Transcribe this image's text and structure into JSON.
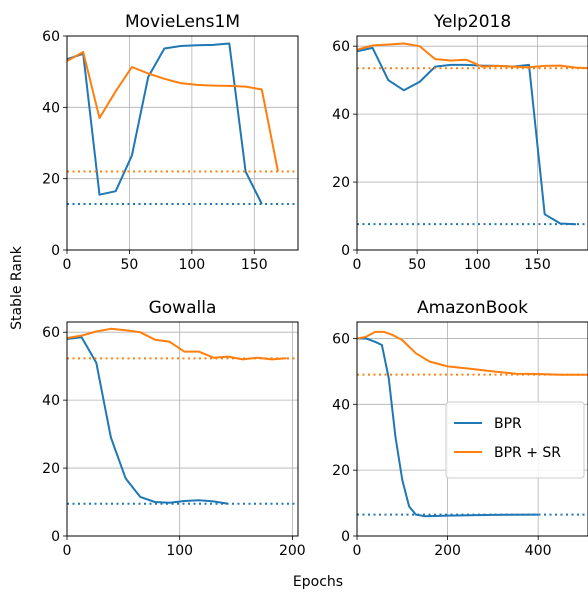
{
  "figure": {
    "ylabel": "Stable Rank",
    "xlabel": "Epochs"
  },
  "colors": {
    "blue": "#1f77b4",
    "orange": "#ff7f0e",
    "grid": "#b0b0b0"
  },
  "chart_data": [
    {
      "type": "line",
      "title": "MovieLens1M",
      "xlim": [
        0,
        185
      ],
      "ylim": [
        0,
        60
      ],
      "xticks": [
        0,
        50,
        100,
        150
      ],
      "yticks": [
        0,
        20,
        40,
        60
      ],
      "grid": true,
      "series": [
        {
          "name": "BPR",
          "color": "#1f77b4",
          "x": [
            0,
            13,
            26,
            39,
            52,
            65,
            78,
            91,
            104,
            117,
            130,
            143,
            156
          ],
          "y": [
            53.5,
            55,
            15.5,
            16.5,
            26.5,
            48.5,
            56.5,
            57.2,
            57.4,
            57.5,
            57.9,
            22,
            12.9
          ]
        },
        {
          "name": "BPR + SR",
          "color": "#ff7f0e",
          "x": [
            0,
            13,
            26,
            39,
            52,
            65,
            78,
            91,
            104,
            117,
            130,
            143,
            156,
            169
          ],
          "y": [
            53,
            55.5,
            37,
            44.5,
            51.3,
            49.5,
            48,
            46.8,
            46.3,
            46.1,
            46,
            45.8,
            45,
            22
          ]
        }
      ],
      "baselines": [
        {
          "series": "BPR",
          "y": 12.9
        },
        {
          "series": "BPR + SR",
          "y": 22.0
        }
      ]
    },
    {
      "type": "line",
      "title": "Yelp2018",
      "xlim": [
        0,
        192
      ],
      "ylim": [
        0,
        63
      ],
      "xticks": [
        0,
        50,
        100,
        150
      ],
      "yticks": [
        0,
        20,
        40,
        60
      ],
      "grid": true,
      "series": [
        {
          "name": "BPR",
          "color": "#1f77b4",
          "x": [
            0,
            13,
            26,
            39,
            52,
            65,
            78,
            91,
            104,
            117,
            130,
            143,
            156,
            169,
            182
          ],
          "y": [
            58.5,
            59.5,
            50,
            47,
            49.5,
            54,
            54.5,
            54.5,
            54.3,
            54.2,
            54,
            54.5,
            10.5,
            7.8,
            7.6
          ]
        },
        {
          "name": "BPR + SR",
          "color": "#ff7f0e",
          "x": [
            0,
            13,
            26,
            39,
            52,
            65,
            78,
            91,
            104,
            117,
            130,
            143,
            156,
            169,
            182,
            195
          ],
          "y": [
            59,
            60.2,
            60.5,
            60.8,
            60,
            56.2,
            55.8,
            56,
            54,
            54.2,
            54,
            53.8,
            54.2,
            54.3,
            53.7,
            53.5
          ]
        }
      ],
      "baselines": [
        {
          "series": "BPR",
          "y": 7.6
        },
        {
          "series": "BPR + SR",
          "y": 53.5
        }
      ]
    },
    {
      "type": "line",
      "title": "Gowalla",
      "xlim": [
        0,
        205
      ],
      "ylim": [
        0,
        63
      ],
      "xticks": [
        0,
        100,
        200
      ],
      "yticks": [
        0,
        20,
        40,
        60
      ],
      "grid": true,
      "series": [
        {
          "name": "BPR",
          "color": "#1f77b4",
          "x": [
            0,
            13,
            26,
            39,
            52,
            65,
            78,
            91,
            104,
            117,
            130,
            143
          ],
          "y": [
            58,
            58.5,
            51,
            29,
            17,
            11.5,
            10,
            9.8,
            10.3,
            10.5,
            10.2,
            9.5
          ]
        },
        {
          "name": "BPR + SR",
          "color": "#ff7f0e",
          "x": [
            0,
            13,
            26,
            39,
            52,
            65,
            78,
            91,
            104,
            117,
            130,
            143,
            156,
            169,
            182,
            195
          ],
          "y": [
            58.3,
            59,
            60.2,
            61,
            60.6,
            60,
            57.8,
            57.2,
            54.3,
            54.3,
            52.5,
            52.8,
            52,
            52.5,
            52,
            52.3
          ]
        }
      ],
      "baselines": [
        {
          "series": "BPR",
          "y": 9.5
        },
        {
          "series": "BPR + SR",
          "y": 52.3
        }
      ]
    },
    {
      "type": "line",
      "title": "AmazonBook",
      "xlim": [
        0,
        510
      ],
      "ylim": [
        0,
        65
      ],
      "xticks": [
        0,
        200,
        400
      ],
      "yticks": [
        0,
        20,
        40,
        60
      ],
      "grid": true,
      "legend": {
        "entries": [
          "BPR",
          "BPR + SR"
        ],
        "placement": "center-right"
      },
      "series": [
        {
          "name": "BPR",
          "color": "#1f77b4",
          "x": [
            0,
            20,
            40,
            55,
            70,
            85,
            100,
            115,
            130,
            150,
            200,
            300,
            400
          ],
          "y": [
            60,
            60,
            59,
            58,
            48,
            30,
            17,
            9,
            6.5,
            6,
            6.2,
            6.4,
            6.5
          ]
        },
        {
          "name": "BPR + SR",
          "color": "#ff7f0e",
          "x": [
            0,
            20,
            40,
            60,
            80,
            100,
            130,
            160,
            200,
            250,
            300,
            350,
            400,
            450,
            510
          ],
          "y": [
            60,
            60.5,
            62,
            62,
            61,
            59.5,
            55.5,
            53,
            51.5,
            50.8,
            50,
            49.3,
            49.2,
            49,
            49
          ]
        }
      ],
      "baselines": [
        {
          "series": "BPR",
          "y": 6.5
        },
        {
          "series": "BPR + SR",
          "y": 49.0
        }
      ]
    }
  ]
}
